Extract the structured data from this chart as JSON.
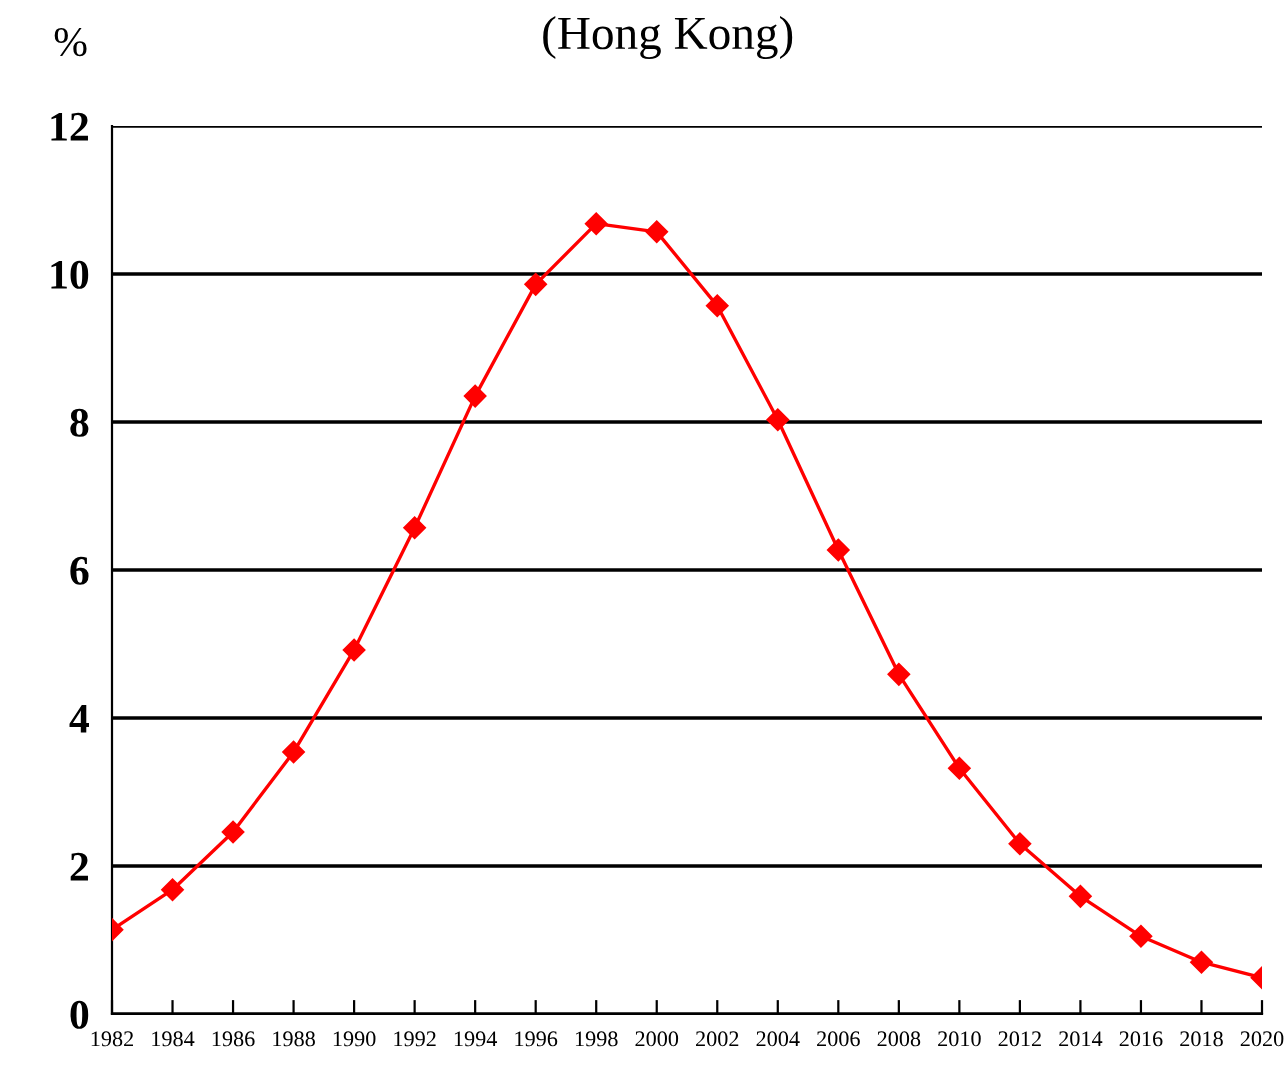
{
  "chart_data": {
    "type": "line",
    "title": "(Hong Kong)",
    "ylabel": "%",
    "x": [
      1982,
      1984,
      1986,
      1988,
      1990,
      1992,
      1994,
      1996,
      1998,
      2000,
      2002,
      2004,
      2006,
      2008,
      2010,
      2012,
      2014,
      2016,
      2018,
      2020
    ],
    "series": [
      {
        "color": "#ff0000",
        "values": [
          1.14,
          1.68,
          2.46,
          3.54,
          4.92,
          6.57,
          8.35,
          9.86,
          10.68,
          10.57,
          9.57,
          8.03,
          6.27,
          4.59,
          3.32,
          2.3,
          1.59,
          1.05,
          0.7,
          0.49
        ]
      }
    ],
    "xlim": [
      1982,
      2020
    ],
    "xticks": [
      1982,
      1984,
      1986,
      1988,
      1990,
      1992,
      1994,
      1996,
      1998,
      2000,
      2002,
      2004,
      2006,
      2008,
      2010,
      2012,
      2014,
      2016,
      2018,
      2020
    ],
    "ylim": [
      0,
      12
    ],
    "yticks": [
      0,
      2,
      4,
      6,
      8,
      10,
      12
    ],
    "grid": "y",
    "marker": "diamond",
    "line_style": "solid",
    "legend": false
  }
}
